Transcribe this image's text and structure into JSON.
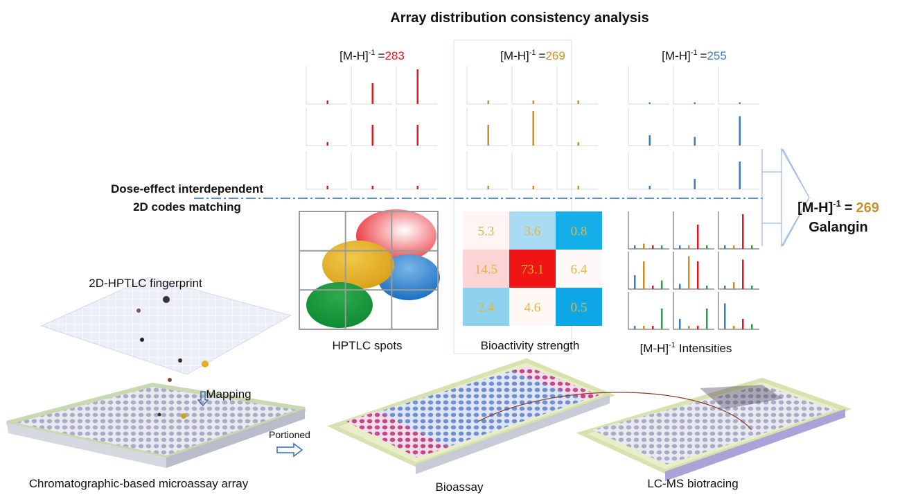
{
  "title": "Array distribution consistency analysis",
  "ions": [
    {
      "base": "[M-H]",
      "sup": "-1",
      "eq": "=",
      "mass": 283,
      "color": "#e8141b",
      "grid": [
        [
          0.1,
          0.6,
          1.0
        ],
        [
          0.1,
          0.6,
          0.6
        ],
        [
          0.1,
          0.1,
          0.1
        ]
      ]
    },
    {
      "base": "[M-H]",
      "sup": "-1",
      "eq": "=",
      "mass": 269,
      "color": "#c8902a",
      "grid": [
        [
          0.1,
          0.1,
          0.1
        ],
        [
          0.6,
          1.0,
          0.1
        ],
        [
          0.1,
          0.1,
          0.1
        ]
      ]
    },
    {
      "base": "[M-H]",
      "sup": "-1",
      "eq": "=",
      "mass": 255,
      "color": "#3b7dc4",
      "grid": [
        [
          0.05,
          0.05,
          0.05
        ],
        [
          0.3,
          0.25,
          0.85
        ],
        [
          0.1,
          0.3,
          0.8
        ]
      ]
    }
  ],
  "left_label": [
    "Dose-effect interdependent",
    "2D codes matching"
  ],
  "result": {
    "base": "[M-H]",
    "sup": "-1",
    "eq": "=",
    "mass": 269,
    "name": "Galangin"
  },
  "heatmap": {
    "rows": [
      [
        5.3,
        3.6,
        0.8
      ],
      [
        14.5,
        73.1,
        6.4
      ],
      [
        2.4,
        4.6,
        0.5
      ]
    ],
    "colors": [
      [
        "#fff5f5",
        "#a9dcf4",
        "#14aee8"
      ],
      [
        "#fbd5d5",
        "#f01414",
        "#fff8f8"
      ],
      [
        "#8fd2f0",
        "#fff8f5",
        "#0ea8e6"
      ]
    ],
    "text_color": "#e8b33a"
  },
  "spectra": {
    "colors": [
      "#3b7dc4",
      "#c8902a",
      "#e8141b",
      "#2aa24a"
    ],
    "cells": [
      [
        [
          0.1,
          0.15,
          0.1,
          0.1
        ],
        [
          0.1,
          0.1,
          0.7,
          0.1
        ],
        [
          0.1,
          0.1,
          1.0,
          0.1
        ]
      ],
      [
        [
          0.4,
          0.8,
          0.1,
          0.25
        ],
        [
          0.15,
          0.95,
          0.8,
          0.1
        ],
        [
          0.1,
          0.2,
          0.85,
          0.1
        ]
      ],
      [
        [
          0.1,
          0.1,
          0.1,
          0.6
        ],
        [
          0.3,
          0.1,
          0.1,
          0.6
        ],
        [
          0.75,
          0.1,
          0.3,
          0.15
        ]
      ]
    ]
  },
  "panel_labels": {
    "spots": "HPTLC spots",
    "bioactivity": "Bioactivity strength",
    "intensities": {
      "base": "[M-H]",
      "sup": "-1",
      "text": "Intensities"
    }
  },
  "labels": {
    "fingerprint": "2D-HPTLC fingerprint",
    "mapping": "Mapping",
    "portioned": "Portioned",
    "array": "Chromatographic-based microassay array",
    "bioassay": "Bioassay",
    "lcms": "LC-MS biotracing"
  }
}
